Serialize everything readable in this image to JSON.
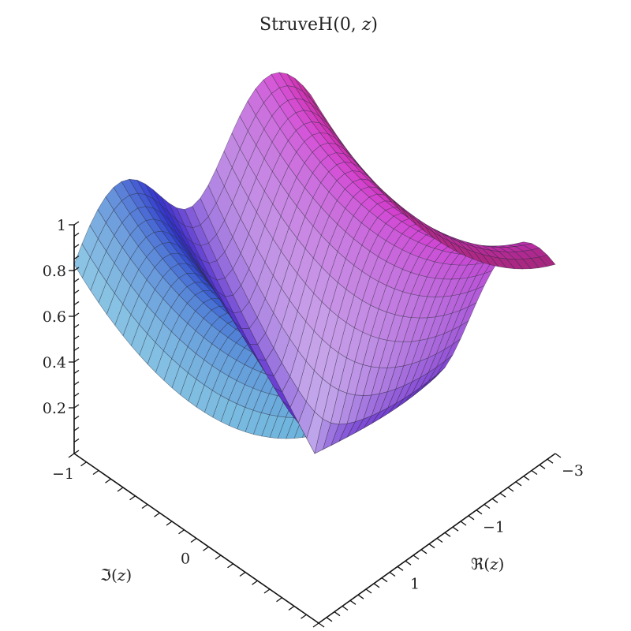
{
  "chart_data": {
    "type": "surface",
    "title": {
      "prefix": "StruveH(0, ",
      "var": "z",
      "suffix": ")"
    },
    "function": "StruveH(0, z)",
    "x_axis": {
      "label": {
        "symbol": "ℜ",
        "open": "(",
        "var": "z",
        "close": ")"
      },
      "range": [
        -3,
        3
      ],
      "ticks": [
        -3,
        -1,
        1
      ]
    },
    "y_axis": {
      "label": {
        "symbol": "ℑ",
        "open": "(",
        "var": "z",
        "close": ")"
      },
      "range": [
        -1,
        1
      ],
      "ticks": [
        -1,
        0
      ]
    },
    "z_axis": {
      "range": [
        0,
        1
      ],
      "ticks": [
        0.2,
        0.4,
        0.6,
        0.8,
        1
      ]
    },
    "grid_mesh": true,
    "colormap": "rainbow-hue"
  }
}
